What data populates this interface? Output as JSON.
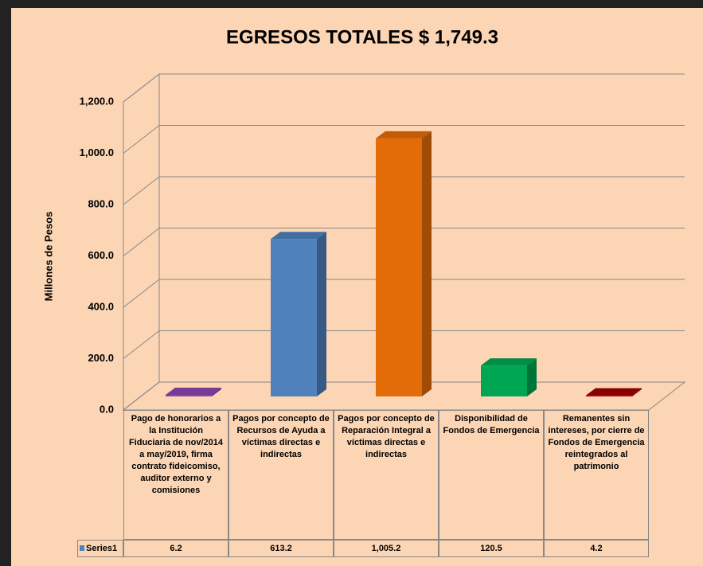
{
  "chart_data": {
    "type": "bar",
    "title": "EGRESOS TOTALES $ 1,749.3",
    "ylabel": "Millones de Pesos",
    "categories": [
      "Pago de honorarios a la Institución Fiduciaria de nov/2014 a may/2019, firma contrato fideicomiso, auditor externo y comisiones",
      "Pagos por concepto de Recursos de Ayuda a víctimas directas e indirectas",
      "Pagos por concepto de Reparación Integral a víctimas directas e indirectas",
      "Disponibilidad de Fondos de Emergencia",
      "Remanentes sin intereses, por cierre de Fondos de Emergencia reintegrados al patrimonio"
    ],
    "series": [
      {
        "name": "Series1",
        "color": "#4f81bd",
        "colors": [
          "#8e44ad",
          "#4f81bd",
          "#e36c09",
          "#00a651",
          "#a00000"
        ],
        "values": [
          6.2,
          613.2,
          1005.2,
          120.5,
          4.2
        ],
        "value_labels": [
          "6.2",
          "613.2",
          "1,005.2",
          "120.5",
          "4.2"
        ]
      }
    ],
    "ylim": [
      0,
      1200
    ],
    "yticks": [
      {
        "value": 0,
        "label": "0.0"
      },
      {
        "value": 200,
        "label": "200.0"
      },
      {
        "value": 400,
        "label": "400.0"
      },
      {
        "value": 600,
        "label": "600.0"
      },
      {
        "value": 800,
        "label": "800.0"
      },
      {
        "value": 1000,
        "label": "1,000.0"
      },
      {
        "value": 1200,
        "label": "1,200.0"
      }
    ],
    "grid": true
  }
}
